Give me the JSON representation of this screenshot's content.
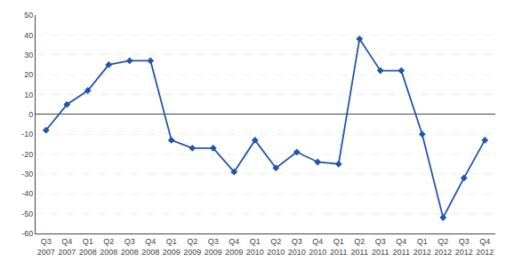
{
  "chart_data": {
    "type": "line",
    "categories": [
      "Q3\n2007",
      "Q4\n2007",
      "Q1\n2008",
      "Q2\n2008",
      "Q3\n2008",
      "Q4\n2008",
      "Q1\n2009",
      "Q2\n2009",
      "Q3\n2009",
      "Q4\n2009",
      "Q1\n2010",
      "Q2\n2010",
      "Q3\n2010",
      "Q4\n2010",
      "Q1\n2011",
      "Q2\n2011",
      "Q3\n2011",
      "Q4\n2011",
      "Q1\n2012",
      "Q2\n2012",
      "Q3\n2012",
      "Q4\n2012"
    ],
    "values": [
      -8,
      5,
      12,
      25,
      27,
      27,
      -13,
      -17,
      -17,
      -29,
      -13,
      -27,
      -19,
      -24,
      -25,
      38,
      22,
      22,
      -10,
      -52,
      -32,
      -13
    ],
    "color": "#2255AA",
    "marker": "diamond",
    "line_style": "solid",
    "ylim": [
      -60,
      50
    ],
    "yticks": [
      -60,
      -50,
      -40,
      -30,
      -20,
      -10,
      0,
      10,
      20,
      30,
      40,
      50
    ],
    "grid": true
  }
}
